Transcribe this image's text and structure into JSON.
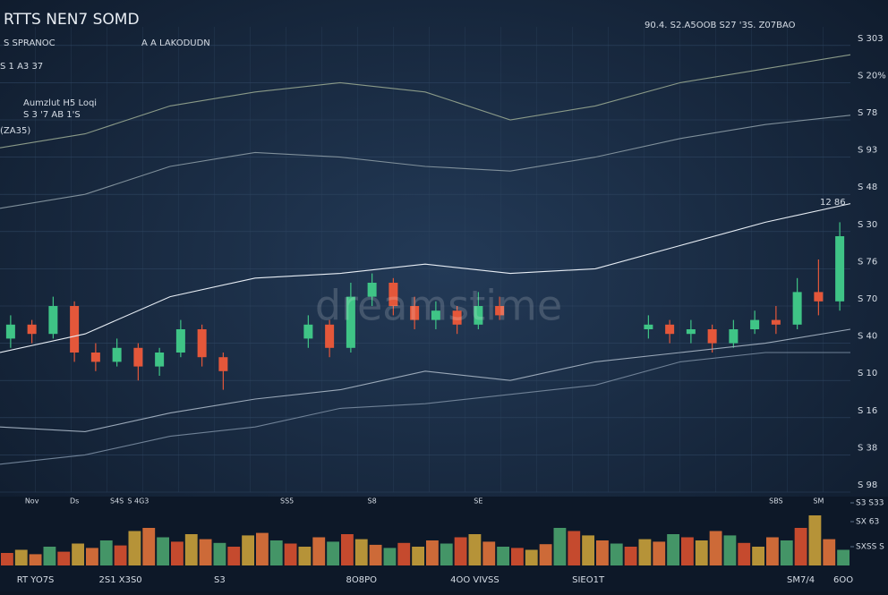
{
  "chart_data": [
    {
      "type": "candlestick",
      "title": "RTTS NEN7 SOMD",
      "annotations": [
        "S SPRANOC",
        "A A LAKODUDN",
        "S 1 A3 37",
        "Aumzlut H5 Loqi",
        "S 3 '7 AB 1'S",
        "(ZA35)",
        "90.4. S2.A5OOB S27 '3S. Z07BAO",
        "12 86",
        "dreamstime"
      ],
      "categories": [
        null,
        "Nov",
        null,
        "Ds",
        null,
        "S4S",
        "S 4G3",
        null,
        null,
        null,
        null,
        null,
        null,
        "SS5",
        null,
        null,
        null,
        "S8",
        null,
        null,
        null,
        null,
        "SE",
        null,
        null,
        null,
        null,
        null,
        null,
        null,
        null,
        null,
        null,
        null,
        null,
        null,
        "SBS",
        null,
        "SM",
        null
      ],
      "open": [
        33,
        36,
        34,
        40,
        30,
        28,
        31,
        27,
        30,
        35,
        29,
        null,
        null,
        null,
        33,
        36,
        31,
        42,
        45,
        40,
        37,
        39,
        36,
        40,
        null,
        null,
        null,
        null,
        null,
        null,
        35,
        36,
        34,
        35,
        32,
        35,
        37,
        36,
        43,
        41
      ],
      "high": [
        38,
        37,
        42,
        41,
        32,
        33,
        32,
        31,
        37,
        36,
        30,
        null,
        null,
        null,
        38,
        37,
        45,
        47,
        46,
        42,
        41,
        40,
        43,
        42,
        null,
        null,
        null,
        null,
        null,
        null,
        38,
        37,
        37,
        36,
        37,
        39,
        40,
        46,
        50,
        58
      ],
      "low": [
        31,
        32,
        33,
        28,
        26,
        27,
        24,
        25,
        29,
        27,
        22,
        null,
        null,
        null,
        31,
        29,
        30,
        40,
        38,
        35,
        35,
        34,
        35,
        37,
        null,
        null,
        null,
        null,
        null,
        null,
        33,
        32,
        32,
        30,
        31,
        34,
        34,
        35,
        38,
        39
      ],
      "close": [
        36,
        34,
        40,
        30,
        28,
        31,
        27,
        30,
        35,
        29,
        26,
        null,
        null,
        null,
        36,
        31,
        42,
        45,
        40,
        37,
        39,
        36,
        40,
        38,
        null,
        null,
        null,
        null,
        null,
        null,
        36,
        34,
        35,
        32,
        35,
        37,
        36,
        43,
        41,
        55
      ],
      "up_color": "#3fc486",
      "down_color": "#e4573a",
      "ylim": [
        0,
        100
      ],
      "yticks": [
        {
          "value": 0,
          "label": "S 98"
        },
        {
          "value": 8,
          "label": "S 38"
        },
        {
          "value": 16,
          "label": "S 16"
        },
        {
          "value": 24,
          "label": "S 10"
        },
        {
          "value": 32,
          "label": "S 40"
        },
        {
          "value": 40,
          "label": "S 70"
        },
        {
          "value": 48,
          "label": "S 76"
        },
        {
          "value": 56,
          "label": "S 30"
        },
        {
          "value": 64,
          "label": "S 48"
        },
        {
          "value": 72,
          "label": "S 93"
        },
        {
          "value": 80,
          "label": "S 78"
        },
        {
          "value": 88,
          "label": "S 20%"
        },
        {
          "value": 96,
          "label": "S 303"
        }
      ],
      "grid": true
    },
    {
      "type": "line",
      "x": [
        0,
        4,
        8,
        12,
        16,
        20,
        24,
        28,
        32,
        36,
        40
      ],
      "xlim": [
        0,
        40
      ],
      "ylim": [
        0,
        100
      ],
      "series": [
        {
          "color": "#8a9a88",
          "values": [
            74,
            77,
            83,
            86,
            88,
            86,
            80,
            83,
            88,
            91,
            94
          ]
        },
        {
          "color": "#7f8f9a",
          "values": [
            61,
            64,
            70,
            73,
            72,
            70,
            69,
            72,
            76,
            79,
            81
          ]
        },
        {
          "color": "#e8eef5",
          "values": [
            30,
            34,
            42,
            46,
            47,
            49,
            47,
            48,
            53,
            58,
            62
          ]
        },
        {
          "color": "#9aa8b8",
          "values": [
            14,
            13,
            17,
            20,
            22,
            26,
            24,
            28,
            30,
            32,
            35
          ]
        },
        {
          "color": "#6f8196",
          "values": [
            6,
            8,
            12,
            14,
            18,
            19,
            21,
            23,
            28,
            30,
            30
          ]
        }
      ]
    },
    {
      "type": "bar",
      "categories": [
        null,
        null,
        "RT YO7S",
        null,
        null,
        null,
        null,
        null,
        "2S1 X3S0",
        null,
        null,
        null,
        null,
        null,
        null,
        "S3",
        null,
        null,
        null,
        null,
        null,
        null,
        null,
        null,
        null,
        "8O8PO",
        null,
        null,
        null,
        null,
        null,
        null,
        null,
        "4OO VIVSS",
        null,
        null,
        null,
        null,
        null,
        null,
        null,
        "SIEO1T",
        null,
        null,
        null,
        null,
        null,
        null,
        null,
        null,
        null,
        null,
        null,
        null,
        null,
        null,
        "SM7/4",
        null,
        null,
        "6OO"
      ],
      "values": [
        20,
        25,
        18,
        30,
        22,
        35,
        28,
        40,
        32,
        55,
        60,
        45,
        38,
        50,
        42,
        36,
        30,
        48,
        52,
        40,
        35,
        30,
        45,
        38,
        50,
        42,
        33,
        28,
        36,
        30,
        40,
        35,
        45,
        50,
        38,
        30,
        28,
        25,
        34,
        60,
        55,
        48,
        40,
        35,
        30,
        42,
        38,
        50,
        45,
        40,
        55,
        48,
        36,
        30,
        45,
        40,
        60,
        80,
        42,
        25
      ],
      "colors": [
        "#d9502f",
        "#c9a13a",
        "#e2733a",
        "#4aa36e"
      ],
      "ylim": [
        0,
        100
      ],
      "yticks": [
        {
          "value": 30,
          "label": "SXSS S"
        },
        {
          "value": 70,
          "label": "SX 63"
        },
        {
          "value": 100,
          "label": "S3 S33"
        }
      ]
    }
  ]
}
